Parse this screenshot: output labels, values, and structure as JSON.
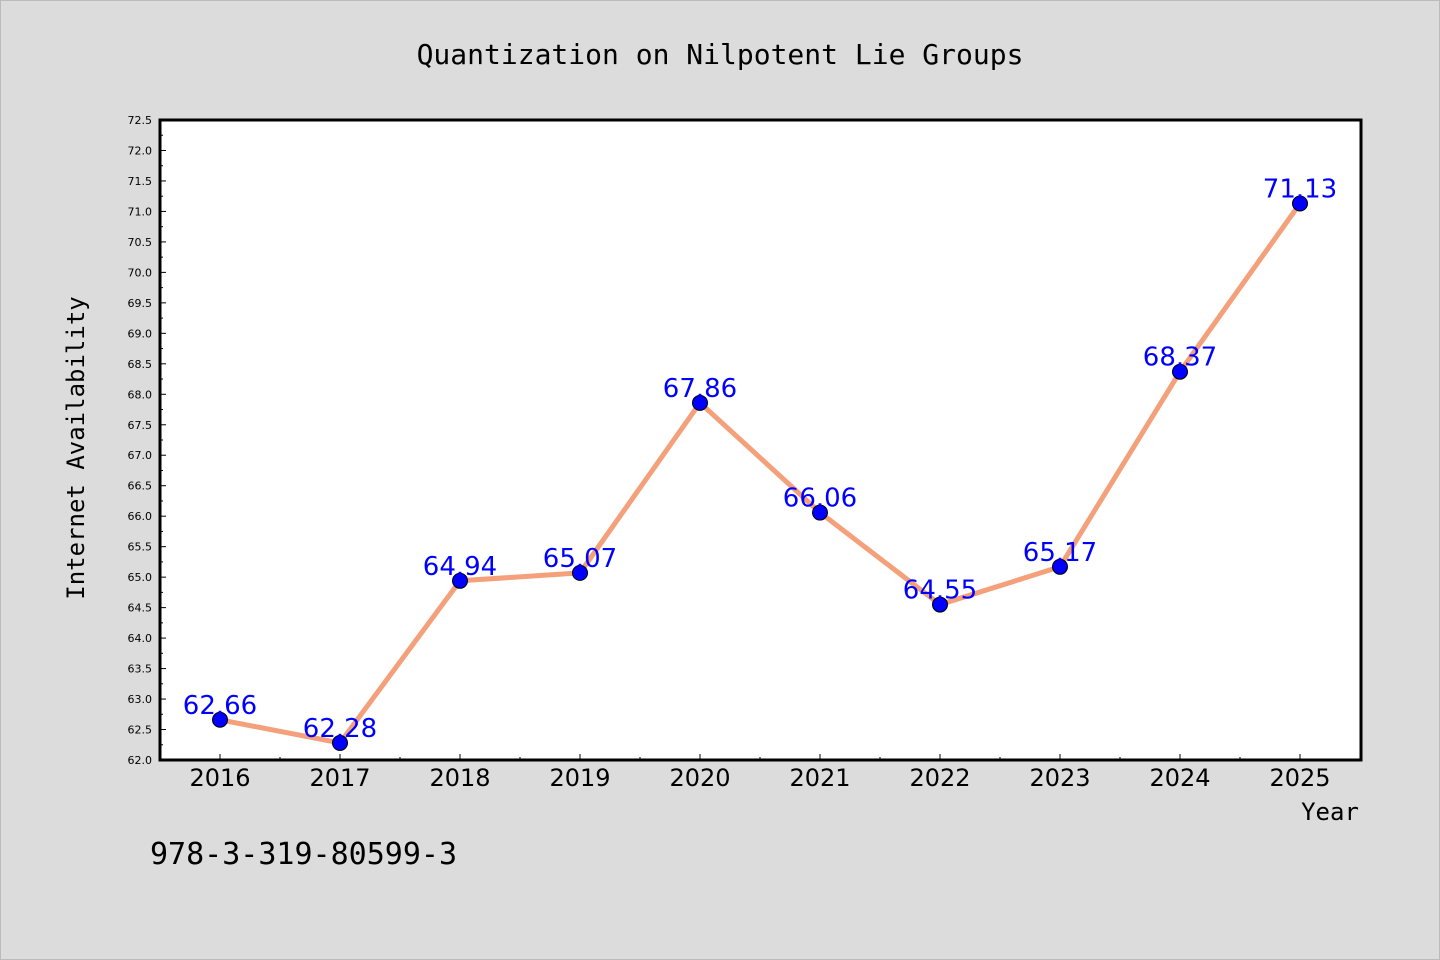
{
  "chart_data": {
    "type": "line",
    "title": "Quantization on Nilpotent Lie Groups",
    "xlabel": "Year",
    "ylabel": "Internet Availability",
    "categories": [
      "2016",
      "2017",
      "2018",
      "2019",
      "2020",
      "2021",
      "2022",
      "2023",
      "2024",
      "2025"
    ],
    "series": [
      {
        "values": [
          62.66,
          62.28,
          64.94,
          65.07,
          67.86,
          66.06,
          64.55,
          65.17,
          68.37,
          71.13
        ]
      }
    ],
    "ylim": [
      62.0,
      72.5
    ],
    "ytick_step": 0.5,
    "grid": false,
    "data_labels": true,
    "colors": {
      "line": "#f4a07a",
      "marker": "#0000ff",
      "label": "#0000ff",
      "plot_background": "#ffffff",
      "figure_background": "#dcdcdc"
    }
  },
  "annotation": "978-3-319-80599-3"
}
